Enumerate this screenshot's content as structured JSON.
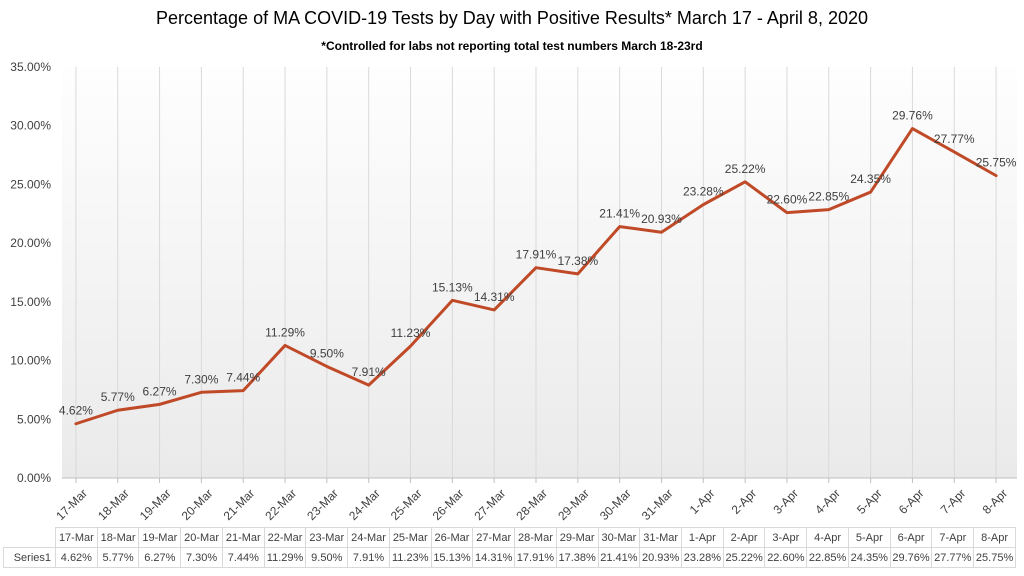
{
  "title": "Percentage of MA COVID-19 Tests by Day with Positive Results* March 17 - April 8, 2020",
  "subtitle": "*Controlled for labs not reporting total test numbers March 18-23rd",
  "chart_data": {
    "type": "line",
    "title": "Percentage of MA COVID-19 Tests by Day with Positive Results* March 17 - April 8, 2020",
    "subtitle": "*Controlled for labs not reporting total test numbers March 18-23rd",
    "categories": [
      "17-Mar",
      "18-Mar",
      "19-Mar",
      "20-Mar",
      "21-Mar",
      "22-Mar",
      "23-Mar",
      "24-Mar",
      "25-Mar",
      "26-Mar",
      "27-Mar",
      "28-Mar",
      "29-Mar",
      "30-Mar",
      "31-Mar",
      "1-Apr",
      "2-Apr",
      "3-Apr",
      "4-Apr",
      "5-Apr",
      "6-Apr",
      "7-Apr",
      "8-Apr"
    ],
    "series": [
      {
        "name": "Series1",
        "values": [
          4.62,
          5.77,
          6.27,
          7.3,
          7.44,
          11.29,
          9.5,
          7.91,
          11.23,
          15.13,
          14.31,
          17.91,
          17.38,
          21.41,
          20.93,
          23.28,
          25.22,
          22.6,
          22.85,
          24.35,
          29.76,
          27.77,
          25.75
        ],
        "value_labels": [
          "4.62%",
          "5.77%",
          "6.27%",
          "7.30%",
          "7.44%",
          "11.29%",
          "9.50%",
          "7.91%",
          "11.23%",
          "15.13%",
          "14.31%",
          "17.91%",
          "17.38%",
          "21.41%",
          "20.93%",
          "23.28%",
          "25.22%",
          "22.60%",
          "22.85%",
          "24.35%",
          "29.76%",
          "27.77%",
          "25.75%"
        ]
      }
    ],
    "ylim": [
      0,
      35
    ],
    "y_tick_values": [
      0,
      5,
      10,
      15,
      20,
      25,
      30,
      35
    ],
    "y_tick_labels": [
      "0.00%",
      "5.00%",
      "10.00%",
      "15.00%",
      "20.00%",
      "25.00%",
      "30.00%",
      "35.00%"
    ],
    "grid": "vertical",
    "legend_position": "none",
    "data_table_shown": true,
    "colors": {
      "line": "#c04a28",
      "gridline": "#d9d9d9",
      "axis_line": "#bfbfbf",
      "label_text": "#404040",
      "plot_fill_top": "#fefefe",
      "plot_fill_bottom": "#eaeaea"
    }
  },
  "table": {
    "series_label": "Series1"
  }
}
